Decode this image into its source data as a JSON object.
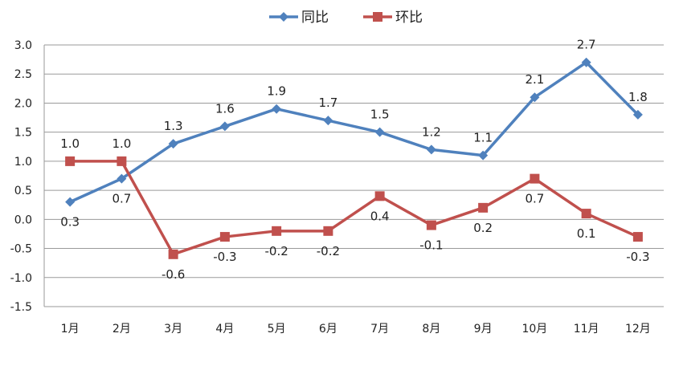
{
  "chart_data": {
    "type": "line",
    "categories": [
      "1月",
      "2月",
      "3月",
      "4月",
      "5月",
      "6月",
      "7月",
      "8月",
      "9月",
      "10月",
      "11月",
      "12月"
    ],
    "series": [
      {
        "name": "同比",
        "color": "#4F81BD",
        "marker": "diamond",
        "values": [
          0.3,
          0.7,
          1.3,
          1.6,
          1.9,
          1.7,
          1.5,
          1.2,
          1.1,
          2.1,
          2.7,
          1.8
        ],
        "labels": [
          "0.3",
          "0.7",
          "1.3",
          "1.6",
          "1.9",
          "1.7",
          "1.5",
          "1.2",
          "1.1",
          "2.1",
          "2.7",
          "1.8"
        ]
      },
      {
        "name": "环比",
        "color": "#C0504D",
        "marker": "square",
        "values": [
          1.0,
          1.0,
          -0.6,
          -0.3,
          -0.2,
          -0.2,
          0.4,
          -0.1,
          0.2,
          0.7,
          0.1,
          -0.3
        ],
        "labels": [
          "1.0",
          "1.0",
          "-0.6",
          "-0.3",
          "-0.2",
          "-0.2",
          "0.4",
          "-0.1",
          "0.2",
          "0.7",
          "0.1",
          "-0.3"
        ]
      }
    ],
    "ylim": [
      -1.5,
      3.0
    ],
    "yticks": [
      "3.0",
      "2.5",
      "2.0",
      "1.5",
      "1.0",
      "0.5",
      "0.0",
      "-0.5",
      "-1.0",
      "-1.5"
    ],
    "grid": true,
    "legend": "top"
  }
}
